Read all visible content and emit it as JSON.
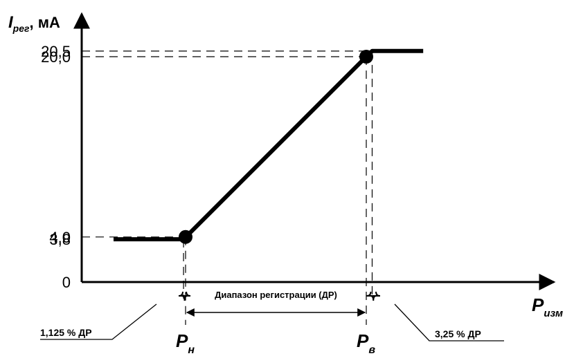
{
  "chart_data": {
    "type": "line",
    "y_axis": {
      "title_main": "I",
      "title_sub": "рег",
      "title_unit": ", мА",
      "ticks": [
        {
          "value": 0,
          "label": "0"
        },
        {
          "value": 3.8,
          "label": "3,8"
        },
        {
          "value": 4.0,
          "label": "4,0"
        },
        {
          "value": 20.0,
          "label": "20,0"
        },
        {
          "value": 20.5,
          "label": "20,5"
        }
      ]
    },
    "x_axis": {
      "title_main": "P",
      "title_sub": "изм",
      "marks": [
        {
          "value": 0,
          "main": "P",
          "sub": "н"
        },
        {
          "value": 100,
          "main": "P",
          "sub": "в"
        }
      ]
    },
    "series": [
      {
        "points": [
          {
            "x": -39.85,
            "y": 3.8
          },
          {
            "x": -1.125,
            "y": 3.8
          },
          {
            "x": 100,
            "y": 20.0
          },
          {
            "x": 103.25,
            "y": 20.5
          },
          {
            "x": 131.5,
            "y": 20.5
          }
        ],
        "markers": [
          {
            "x": 0,
            "y": 4.0
          },
          {
            "x": 100,
            "y": 20.0
          }
        ]
      }
    ],
    "annotations": {
      "range_label": "Диапазон регистрации (ДР)",
      "low_margin_label": "1,125 % ДР",
      "high_margin_label": "3,25 % ДР"
    },
    "colors": {
      "line": "#000000",
      "background": "#ffffff"
    }
  }
}
